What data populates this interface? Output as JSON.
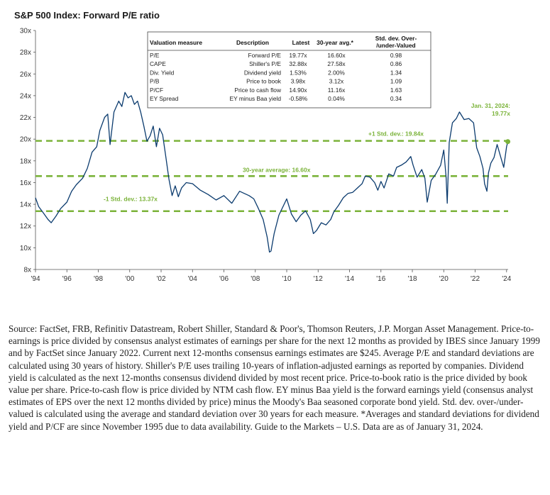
{
  "chart_data": {
    "type": "line",
    "title": "S&P 500 Index: Forward P/E ratio",
    "xlabel": "",
    "ylabel": "",
    "xlim": [
      1994,
      2024.1
    ],
    "ylim": [
      8,
      30
    ],
    "x_tick_values": [
      1994,
      1996,
      1998,
      2000,
      2002,
      2004,
      2006,
      2008,
      2010,
      2012,
      2014,
      2016,
      2018,
      2020,
      2022,
      2024
    ],
    "x_tick_labels": [
      "'94",
      "'96",
      "'98",
      "'00",
      "'02",
      "'04",
      "'06",
      "'08",
      "'10",
      "'12",
      "'14",
      "'16",
      "'18",
      "'20",
      "'22",
      "'24"
    ],
    "y_tick_values": [
      8,
      10,
      12,
      14,
      16,
      18,
      20,
      22,
      24,
      26,
      28,
      30
    ],
    "y_tick_labels": [
      "8x",
      "10x",
      "12x",
      "14x",
      "16x",
      "18x",
      "20x",
      "22x",
      "24x",
      "26x",
      "28x",
      "30x"
    ],
    "series": [
      {
        "name": "Forward P/E",
        "color": "#0b3b6e",
        "x": [
          1994.0,
          1994.2,
          1994.5,
          1994.8,
          1995.0,
          1995.3,
          1995.6,
          1996.0,
          1996.3,
          1996.6,
          1997.0,
          1997.3,
          1997.6,
          1997.9,
          1998.1,
          1998.4,
          1998.6,
          1998.75,
          1999.0,
          1999.3,
          1999.5,
          1999.7,
          1999.9,
          2000.1,
          2000.3,
          2000.5,
          2000.7,
          2000.9,
          2001.1,
          2001.3,
          2001.5,
          2001.7,
          2001.9,
          2002.1,
          2002.3,
          2002.5,
          2002.7,
          2002.9,
          2003.1,
          2003.3,
          2003.6,
          2004.0,
          2004.5,
          2005.0,
          2005.5,
          2006.0,
          2006.5,
          2007.0,
          2007.3,
          2007.6,
          2007.9,
          2008.2,
          2008.5,
          2008.75,
          2008.9,
          2009.0,
          2009.2,
          2009.5,
          2009.8,
          2010.0,
          2010.3,
          2010.6,
          2010.9,
          2011.2,
          2011.5,
          2011.7,
          2011.9,
          2012.2,
          2012.5,
          2012.8,
          2013.0,
          2013.3,
          2013.6,
          2013.9,
          2014.2,
          2014.5,
          2014.8,
          2015.0,
          2015.3,
          2015.6,
          2015.8,
          2016.0,
          2016.2,
          2016.5,
          2016.8,
          2017.0,
          2017.3,
          2017.6,
          2017.9,
          2018.05,
          2018.3,
          2018.6,
          2018.8,
          2018.95,
          2019.2,
          2019.5,
          2019.8,
          2020.0,
          2020.15,
          2020.22,
          2020.35,
          2020.55,
          2020.8,
          2021.0,
          2021.3,
          2021.6,
          2021.9,
          2022.1,
          2022.3,
          2022.5,
          2022.6,
          2022.75,
          2022.85,
          2023.0,
          2023.2,
          2023.4,
          2023.6,
          2023.82,
          2024.0,
          2024.08
        ],
        "values": [
          14.6,
          13.8,
          13.2,
          12.6,
          12.3,
          12.9,
          13.6,
          14.2,
          15.2,
          15.8,
          16.4,
          17.3,
          18.8,
          19.3,
          20.8,
          22.0,
          22.3,
          19.5,
          22.5,
          23.5,
          23.0,
          24.3,
          23.8,
          24.0,
          23.2,
          23.5,
          22.5,
          21.2,
          19.8,
          20.3,
          21.2,
          19.3,
          21.0,
          20.4,
          18.4,
          16.3,
          14.8,
          15.7,
          14.7,
          15.5,
          16.0,
          15.9,
          15.3,
          14.9,
          14.4,
          14.8,
          14.1,
          15.2,
          15.0,
          14.8,
          14.5,
          13.6,
          12.6,
          11.0,
          9.6,
          9.7,
          11.3,
          13.0,
          13.9,
          14.5,
          13.1,
          12.4,
          13.0,
          13.4,
          12.6,
          11.3,
          11.6,
          12.3,
          12.1,
          12.6,
          13.3,
          13.9,
          14.6,
          15.0,
          15.1,
          15.5,
          15.9,
          16.6,
          16.5,
          16.0,
          15.3,
          16.1,
          15.5,
          16.8,
          16.6,
          17.4,
          17.6,
          17.9,
          18.4,
          17.6,
          16.5,
          17.2,
          16.4,
          14.2,
          16.2,
          16.8,
          17.6,
          19.0,
          16.5,
          14.1,
          19.7,
          21.5,
          21.9,
          22.5,
          21.8,
          21.9,
          21.5,
          19.2,
          18.4,
          17.3,
          15.9,
          15.2,
          16.9,
          17.8,
          18.3,
          19.5,
          18.5,
          17.4,
          19.3,
          19.77
        ]
      }
    ],
    "reference_lines": [
      {
        "label": "+1 Std. dev.: 19.84x",
        "value": 19.84,
        "color": "#7bb33a"
      },
      {
        "label": "30-year average: 16.60x",
        "value": 16.6,
        "color": "#7bb33a"
      },
      {
        "label": "-1 Std. dev.: 13.37x",
        "value": 13.37,
        "color": "#7bb33a"
      }
    ],
    "endpoint_annotation": {
      "date_label": "Jan. 31, 2024:",
      "value_label": "19.77x",
      "x": 2024.08,
      "value": 19.77,
      "color": "#7bb33a"
    },
    "valuation_table": {
      "columns": [
        "Valuation measure",
        "Description",
        "Latest",
        "30-year avg.*",
        "Std. dev. Over-/under-Valued"
      ],
      "rows": [
        [
          "P/E",
          "Forward P/E",
          "19.77x",
          "16.60x",
          "0.98"
        ],
        [
          "CAPE",
          "Shiller's P/E",
          "32.88x",
          "27.58x",
          "0.86"
        ],
        [
          "Div. Yield",
          "Dividend yield",
          "1.53%",
          "2.00%",
          "1.34"
        ],
        [
          "P/B",
          "Price to book",
          "3.98x",
          "3.12x",
          "1.09"
        ],
        [
          "P/CF",
          "Price to cash flow",
          "14.90x",
          "11.16x",
          "1.63"
        ],
        [
          "EY Spread",
          "EY minus Baa yield",
          "-0.58%",
          "0.04%",
          "0.34"
        ]
      ]
    },
    "notes": "Source: FactSet, FRB, Refinitiv Datastream, Robert Shiller, Standard & Poor's, Thomson Reuters, J.P. Morgan Asset Management. Price-to-earnings is price divided by consensus analyst estimates of earnings per share for the next 12 months as provided by IBES since January 1999 and by FactSet since January 2022. Current next 12-months consensus earnings estimates are $245. Average P/E and standard deviations are calculated using 30 years of history. Shiller's P/E uses trailing 10-years of inflation-adjusted earnings as reported by companies. Dividend yield is calculated as the next 12-months consensus dividend divided by most recent price. Price-to-book ratio is the price divided by book value per share. Price-to-cash flow is price divided by NTM cash flow. EY minus Baa yield is the forward earnings yield (consensus analyst estimates of EPS over the next 12 months divided by price) minus the Moody's Baa seasoned corporate bond yield. Std. dev. over-/under-valued is calculated using the average and standard deviation over 30 years for each measure. *Averages and standard deviations for dividend yield and P/CF are since November 1995 due to data availability. Guide to the Markets – U.S. Data are as of January 31, 2024."
  }
}
